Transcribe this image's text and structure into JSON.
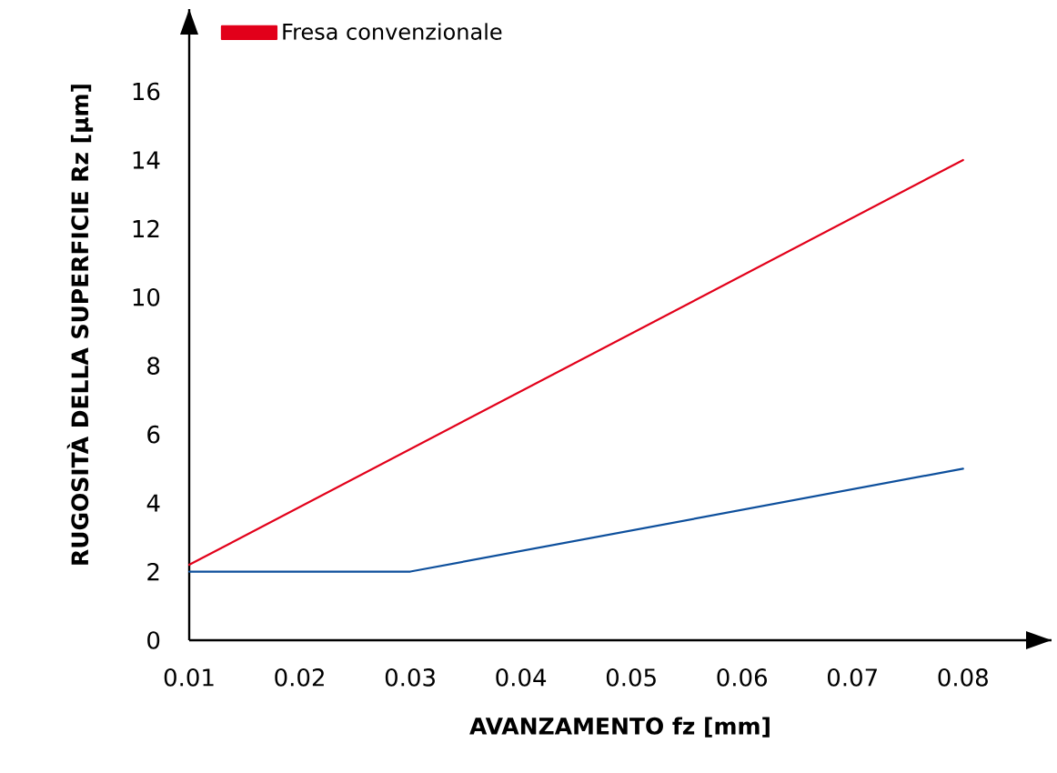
{
  "chart_data": {
    "type": "line",
    "xlabel": "AVANZAMENTO fz [mm]",
    "ylabel": "RUGOSITÀ DELLA SUPERFICIE Rz [µm]",
    "series": [
      {
        "color": "#0d4f9c",
        "x": [
          0.01,
          0.03,
          0.08
        ],
        "values": [
          2,
          2,
          5
        ]
      },
      {
        "name": "Fresa convenzionale",
        "color": "#e2001a",
        "x": [
          0.01,
          0.08
        ],
        "values": [
          2.2,
          14
        ]
      }
    ],
    "xlim": [
      0.01,
      0.088
    ],
    "ylim": [
      0,
      18.4
    ],
    "xticks": [
      0.01,
      0.02,
      0.03,
      0.04,
      0.05,
      0.06,
      0.07,
      0.08
    ],
    "yticks": [
      0,
      2,
      4,
      6,
      8,
      10,
      12,
      14,
      16
    ],
    "legend": "top left"
  }
}
